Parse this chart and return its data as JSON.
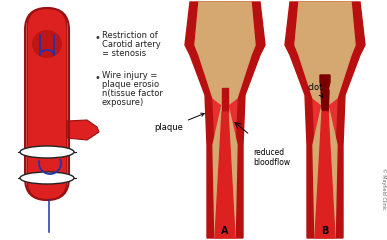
{
  "bg_color": "#ffffff",
  "bullet1_line1": "Restriction of",
  "bullet1_line2": "Carotid artery",
  "bullet1_line3": "= stenosis",
  "bullet2_line1": "Wire injury =",
  "bullet2_line2": "plaque erosio",
  "bullet2_line3": "n(tissue factor",
  "bullet2_line4": "exposure)",
  "label_A": "A",
  "label_B": "B",
  "label_plaque": "plaque",
  "label_clot": "clot",
  "label_reduced": "reduced\nbloodflow",
  "label_mayfield": "© Mayfield Clinic",
  "red_dark": "#b81010",
  "red_wall": "#c41818",
  "red_lumen": "#dd2020",
  "red_bright": "#e83030",
  "plaque_color": "#d4a870",
  "plaque_edge": "#c49060",
  "clot_color": "#7a0000",
  "wire_color": "#2233aa",
  "artery_edge": "#991010"
}
